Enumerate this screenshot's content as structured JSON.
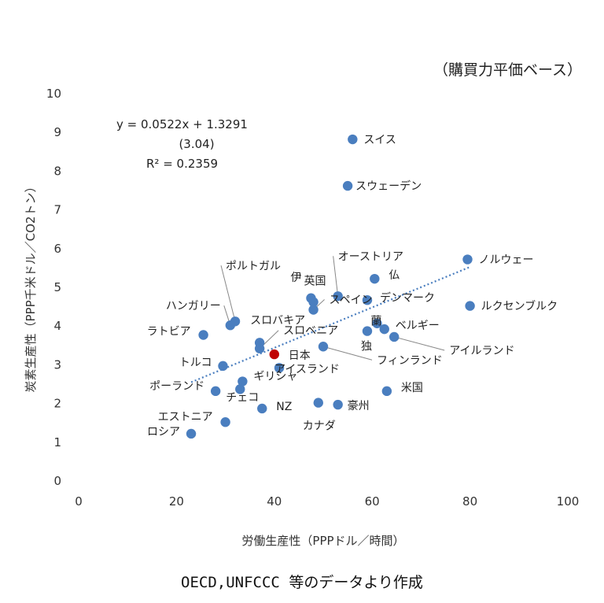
{
  "chart_data": {
    "type": "scatter",
    "title": "",
    "subtitle": "（購買力平価ベース）",
    "xlabel": "労働生産性（PPPドル／時間）",
    "ylabel": "炭素生産性（PPP千米ドル／CO2トン）",
    "xlim": [
      0,
      100
    ],
    "ylim": [
      0,
      10
    ],
    "xticks": [
      "0",
      "20",
      "40",
      "60",
      "80",
      "100"
    ],
    "yticks": [
      "0",
      "1",
      "2",
      "3",
      "4",
      "5",
      "6",
      "7",
      "8",
      "9",
      "10"
    ],
    "grid": false,
    "point_color": "#4a7ebf",
    "highlight_color": "#c00000",
    "trendline_color": "#4a7ebf",
    "trendline": {
      "slope": 0.0522,
      "intercept": 1.3291,
      "x_range": [
        23,
        80
      ]
    },
    "equation_lines": [
      "y = 0.0522x + 1.3291",
      "(3.04)",
      "R² = 0.2359"
    ],
    "points": [
      {
        "label": "スイス",
        "x": 56,
        "y": 8.8
      },
      {
        "label": "スウェーデン",
        "x": 55,
        "y": 7.6
      },
      {
        "label": "ノルウェー",
        "x": 79.5,
        "y": 5.7
      },
      {
        "label": "ルクセンブルク",
        "x": 80,
        "y": 4.5
      },
      {
        "label": "オーストリア",
        "x": 53,
        "y": 4.75
      },
      {
        "label": "仏",
        "x": 60.5,
        "y": 5.2
      },
      {
        "label": "英国",
        "x": 48,
        "y": 4.6
      },
      {
        "label": "伊",
        "x": 47.5,
        "y": 4.7
      },
      {
        "label": "デンマーク",
        "x": 59,
        "y": 4.65
      },
      {
        "label": "蘭",
        "x": 61,
        "y": 4.05
      },
      {
        "label": "ベルギー",
        "x": 62.5,
        "y": 3.9
      },
      {
        "label": "スペイン",
        "x": 48,
        "y": 4.4
      },
      {
        "label": "独",
        "x": 59,
        "y": 3.85
      },
      {
        "label": "アイルランド",
        "x": 64.5,
        "y": 3.7
      },
      {
        "label": "フィンランド",
        "x": 50,
        "y": 3.45
      },
      {
        "label": "スロバキア",
        "x": 37,
        "y": 3.55
      },
      {
        "label": "スロベニア",
        "x": 37,
        "y": 3.4
      },
      {
        "label": "ポルトガル",
        "x": 32,
        "y": 4.1
      },
      {
        "label": "ハンガリー",
        "x": 31,
        "y": 4.0
      },
      {
        "label": "ラトビア",
        "x": 25.5,
        "y": 3.75
      },
      {
        "label": "日本",
        "x": 40,
        "y": 3.25,
        "highlight": true
      },
      {
        "label": "アイスランド",
        "x": 41,
        "y": 2.9
      },
      {
        "label": "トルコ",
        "x": 29.5,
        "y": 2.95
      },
      {
        "label": "ギリシャ",
        "x": 33.5,
        "y": 2.55
      },
      {
        "label": "チェコ",
        "x": 33,
        "y": 2.35
      },
      {
        "label": "ポーランド",
        "x": 28,
        "y": 2.3
      },
      {
        "label": "米国",
        "x": 63,
        "y": 2.3
      },
      {
        "label": "NZ",
        "x": 37.5,
        "y": 1.85
      },
      {
        "label": "カナダ",
        "x": 49,
        "y": 2.0
      },
      {
        "label": "豪州",
        "x": 53,
        "y": 1.95
      },
      {
        "label": "エストニア",
        "x": 30,
        "y": 1.5
      },
      {
        "label": "ロシア",
        "x": 23,
        "y": 1.2
      }
    ]
  },
  "caption": "OECD,UNFCCC 等のデータより作成"
}
